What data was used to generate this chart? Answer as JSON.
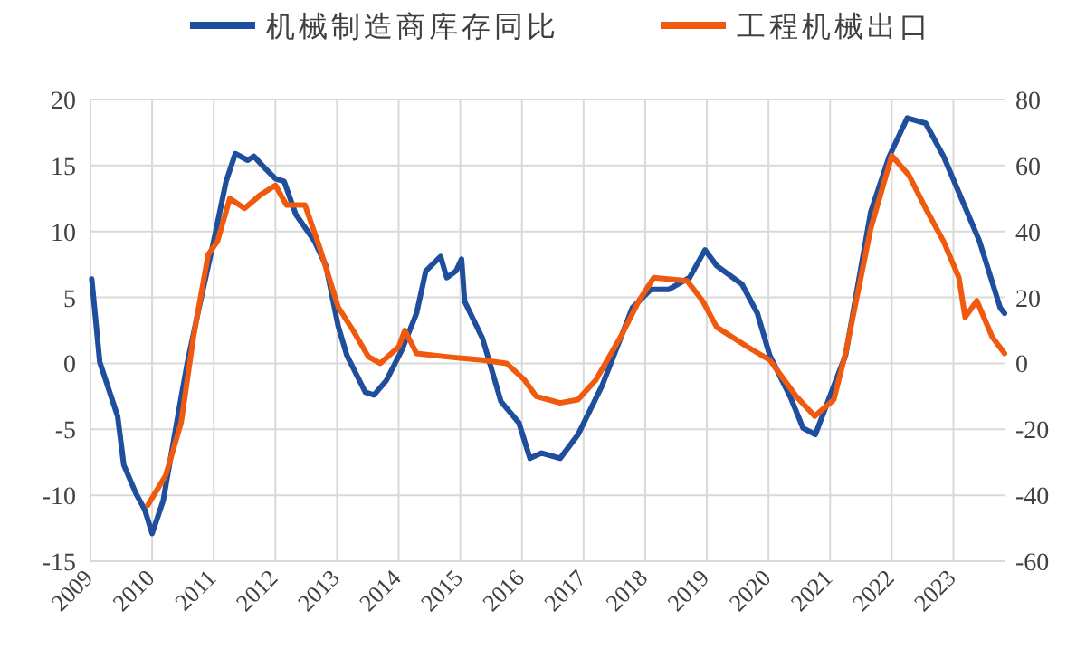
{
  "chart_data": {
    "type": "line",
    "legend": "top",
    "grid": true,
    "marker": "none",
    "line_style": "solid",
    "xlim": [
      2009,
      2023.83
    ],
    "xticks": [
      2009,
      2010,
      2011,
      2012,
      2013,
      2014,
      2015,
      2016,
      2017,
      2018,
      2019,
      2020,
      2021,
      2022,
      2023
    ],
    "ylim": [
      -15,
      20
    ],
    "yticks": [
      -15,
      -10,
      -5,
      0,
      5,
      10,
      15,
      20
    ],
    "y2lim": [
      -60,
      80
    ],
    "y2ticks": [
      -60,
      -40,
      -20,
      0,
      20,
      40,
      60,
      80
    ],
    "series": [
      {
        "name": "机械制造商库存同比",
        "color": "#1f4e9c",
        "x": [
          2009.02,
          2009.15,
          2009.44,
          2009.54,
          2009.74,
          2009.88,
          2010.0,
          2010.18,
          2010.47,
          2010.57,
          2010.76,
          2011.0,
          2011.2,
          2011.35,
          2011.55,
          2011.65,
          2011.85,
          2012.0,
          2012.14,
          2012.33,
          2012.63,
          2012.82,
          2013.02,
          2013.16,
          2013.46,
          2013.6,
          2013.8,
          2014.05,
          2014.29,
          2014.44,
          2014.68,
          2014.78,
          2014.93,
          2015.02,
          2015.07,
          2015.36,
          2015.66,
          2015.95,
          2016.13,
          2016.32,
          2016.62,
          2016.91,
          2017.3,
          2017.6,
          2017.79,
          2018.09,
          2018.38,
          2018.72,
          2018.97,
          2019.16,
          2019.57,
          2019.82,
          2020.02,
          2020.36,
          2020.56,
          2020.76,
          2021.06,
          2021.25,
          2021.66,
          2021.96,
          2022.25,
          2022.55,
          2022.84,
          2023.13,
          2023.42,
          2023.76,
          2023.83
        ],
        "values": [
          6.4,
          0.1,
          -4,
          -7.7,
          -9.9,
          -11.1,
          -12.9,
          -10.4,
          -2.6,
          0,
          4.2,
          9.3,
          13.8,
          15.9,
          15.4,
          15.7,
          14.7,
          14,
          13.8,
          11.3,
          9.3,
          7.4,
          2.8,
          0.6,
          -2.2,
          -2.4,
          -1.3,
          1,
          3.8,
          7,
          8.1,
          6.5,
          7,
          7.9,
          4.7,
          1.9,
          -2.9,
          -4.5,
          -7.2,
          -6.8,
          -7.2,
          -5.4,
          -1.7,
          1.9,
          4.2,
          5.6,
          5.6,
          6.5,
          8.6,
          7.4,
          6,
          3.8,
          0.6,
          -2.6,
          -4.9,
          -5.4,
          -1.7,
          0.6,
          11.5,
          15.7,
          18.6,
          18.2,
          15.7,
          12.5,
          9.3,
          4.2,
          3.8
        ]
      },
      {
        "name": "工程机械出口",
        "color": "#f05a0f",
        "axis": "y2",
        "x": [
          2009.93,
          2010.22,
          2010.47,
          2010.67,
          2010.91,
          2011.06,
          2011.26,
          2011.5,
          2011.75,
          2012.0,
          2012.18,
          2012.48,
          2012.72,
          2013.02,
          2013.26,
          2013.51,
          2013.7,
          2014.0,
          2014.1,
          2014.29,
          2014.78,
          2015.36,
          2015.75,
          2016.04,
          2016.23,
          2016.62,
          2016.91,
          2017.2,
          2017.6,
          2017.9,
          2018.14,
          2018.68,
          2018.93,
          2019.16,
          2019.66,
          2020.02,
          2020.45,
          2020.75,
          2021.06,
          2021.25,
          2021.66,
          2022.0,
          2022.28,
          2022.55,
          2022.84,
          2023.09,
          2023.19,
          2023.38,
          2023.63,
          2023.83
        ],
        "values": [
          -43,
          -34,
          -18,
          8,
          33,
          37,
          50,
          47,
          51,
          54,
          48,
          48,
          35,
          17,
          10,
          2,
          0,
          5,
          10,
          3,
          2,
          1,
          0,
          -5,
          -10,
          -12,
          -11,
          -5,
          8,
          19,
          26,
          25,
          19,
          11,
          5,
          1,
          -10,
          -16,
          -11,
          3,
          41,
          63,
          57,
          47,
          37,
          26,
          14,
          19,
          8,
          3
        ]
      }
    ]
  }
}
